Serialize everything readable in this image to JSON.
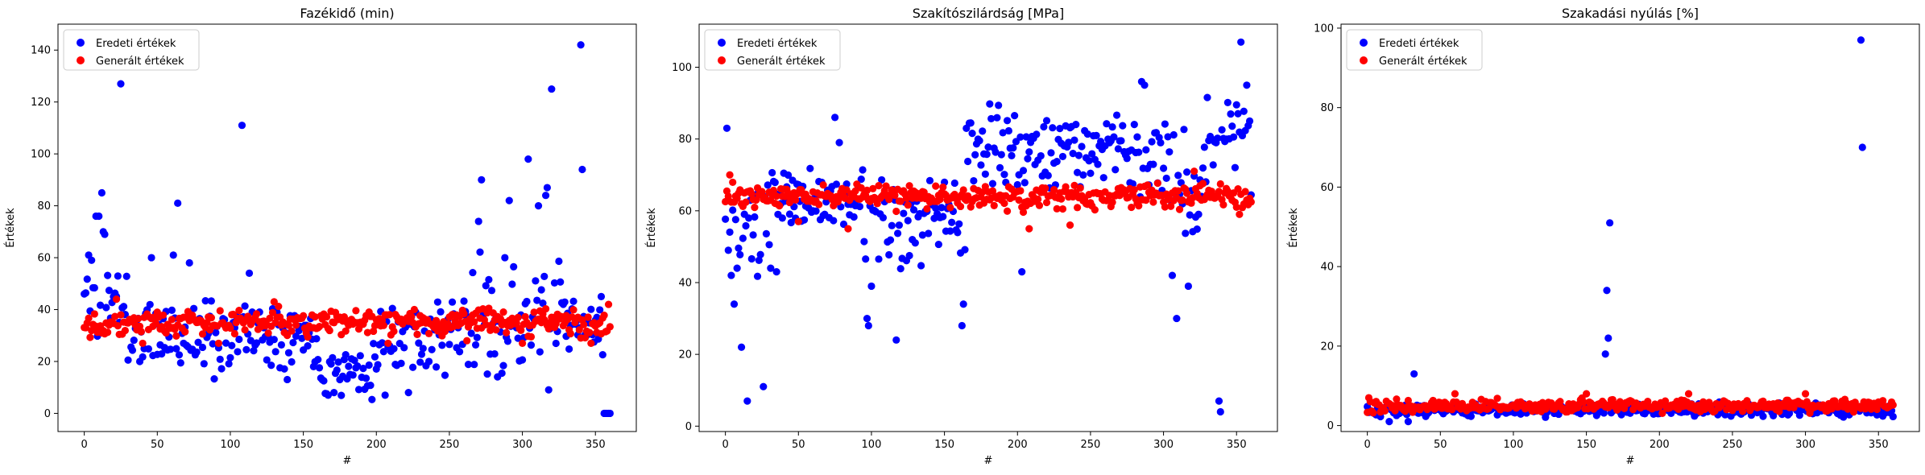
{
  "colors": {
    "original": "#0000ff",
    "generated": "#ff0000",
    "axis": "#000000",
    "legend_border": "#cccccc"
  },
  "chart_data": [
    {
      "type": "scatter",
      "title": "Fazékidő (min)",
      "xlabel": "#",
      "ylabel": "Értékek",
      "xlim": [
        -18,
        378
      ],
      "ylim": [
        -7,
        150
      ],
      "xticks": [
        0,
        50,
        100,
        150,
        200,
        250,
        300,
        350
      ],
      "yticks": [
        0,
        20,
        40,
        60,
        80,
        100,
        120,
        140
      ],
      "grid": false,
      "legend_position": "top-left",
      "legend": [
        "Eredeti értékek",
        "Generált értékek"
      ],
      "series": [
        {
          "name": "Eredeti értékek",
          "color": "#0000ff",
          "n": 360,
          "base": 27,
          "spread": 11,
          "seed": 11,
          "segments": [
            [
              0,
              30,
              44,
              14
            ],
            [
              30,
              100,
              30,
              13
            ],
            [
              100,
              160,
              31,
              11
            ],
            [
              160,
              200,
              17,
              8
            ],
            [
              200,
              260,
              30,
              14
            ],
            [
              260,
              330,
              35,
              18
            ],
            [
              330,
              355,
              33,
              9
            ]
          ],
          "points": [
            [
              0,
              46
            ],
            [
              3,
              61
            ],
            [
              5,
              59
            ],
            [
              8,
              76
            ],
            [
              10,
              76
            ],
            [
              12,
              85
            ],
            [
              13,
              70
            ],
            [
              14,
              69
            ],
            [
              20,
              45
            ],
            [
              25,
              127
            ],
            [
              46,
              60
            ],
            [
              61,
              61
            ],
            [
              64,
              81
            ],
            [
              72,
              58
            ],
            [
              108,
              111
            ],
            [
              113,
              54
            ],
            [
              167,
              7
            ],
            [
              171,
              8
            ],
            [
              175,
              13
            ],
            [
              206,
              7
            ],
            [
              222,
              8
            ],
            [
              270,
              74
            ],
            [
              272,
              90
            ],
            [
              288,
              60
            ],
            [
              291,
              82
            ],
            [
              304,
              98
            ],
            [
              311,
              80
            ],
            [
              316,
              84
            ],
            [
              317,
              87
            ],
            [
              320,
              125
            ],
            [
              340,
              142
            ],
            [
              341,
              94
            ],
            [
              354,
              45
            ],
            [
              356,
              0
            ],
            [
              357,
              0
            ],
            [
              358,
              0
            ],
            [
              359,
              0
            ],
            [
              360,
              0
            ]
          ]
        },
        {
          "name": "Generált értékek",
          "color": "#ff0000",
          "n": 360,
          "base": 35,
          "spread": 4,
          "seed": 22,
          "points": [
            [
              1,
              33
            ],
            [
              22,
              44
            ],
            [
              40,
              27
            ],
            [
              92,
              27
            ],
            [
              130,
              43
            ],
            [
              208,
              27
            ],
            [
              262,
              28
            ],
            [
              300,
              27
            ],
            [
              347,
              27
            ],
            [
              359,
              42
            ]
          ]
        }
      ]
    },
    {
      "type": "scatter",
      "title": "Szakítószilárdság [MPa]",
      "xlabel": "#",
      "ylabel": "Értékek",
      "xlim": [
        -18,
        378
      ],
      "ylim": [
        -1.5,
        112
      ],
      "xticks": [
        0,
        50,
        100,
        150,
        200,
        250,
        300,
        350
      ],
      "yticks": [
        0,
        20,
        40,
        60,
        80,
        100
      ],
      "grid": false,
      "legend_position": "top-left",
      "legend": [
        "Eredeti értékek",
        "Generált értékek"
      ],
      "series": [
        {
          "name": "Eredeti értékek",
          "color": "#0000ff",
          "n": 360,
          "base": 62,
          "spread": 8,
          "seed": 33,
          "segments": [
            [
              0,
              30,
              52,
              12
            ],
            [
              30,
              95,
              63,
              8
            ],
            [
              95,
              165,
              56,
              10
            ],
            [
              165,
              270,
              77,
              9
            ],
            [
              270,
              305,
              76,
              10
            ],
            [
              305,
              330,
              66,
              14
            ],
            [
              330,
              360,
              82,
              9
            ]
          ],
          "points": [
            [
              1,
              83
            ],
            [
              4,
              42
            ],
            [
              6,
              34
            ],
            [
              8,
              44
            ],
            [
              11,
              22
            ],
            [
              15,
              7
            ],
            [
              26,
              11
            ],
            [
              31,
              44
            ],
            [
              35,
              43
            ],
            [
              75,
              86
            ],
            [
              78,
              79
            ],
            [
              97,
              30
            ],
            [
              98,
              28
            ],
            [
              100,
              39
            ],
            [
              117,
              24
            ],
            [
              162,
              28
            ],
            [
              163,
              34
            ],
            [
              203,
              43
            ],
            [
              285,
              96
            ],
            [
              287,
              95
            ],
            [
              306,
              42
            ],
            [
              309,
              30
            ],
            [
              317,
              39
            ],
            [
              338,
              7
            ],
            [
              339,
              4
            ],
            [
              353,
              107
            ],
            [
              357,
              95
            ],
            [
              359,
              85
            ]
          ]
        },
        {
          "name": "Generált értékek",
          "color": "#ff0000",
          "n": 360,
          "base": 64,
          "spread": 3,
          "seed": 44,
          "points": [
            [
              3,
              70
            ],
            [
              50,
              57
            ],
            [
              84,
              55
            ],
            [
              208,
              55
            ],
            [
              236,
              56
            ],
            [
              321,
              71
            ],
            [
              352,
              59
            ]
          ]
        }
      ]
    },
    {
      "type": "scatter",
      "title": "Szakadási nyúlás [%]",
      "xlabel": "#",
      "ylabel": "Értékek",
      "xlim": [
        -18,
        378
      ],
      "ylim": [
        -1.5,
        101
      ],
      "xticks": [
        0,
        50,
        100,
        150,
        200,
        250,
        300,
        350
      ],
      "yticks": [
        0,
        20,
        40,
        60,
        80,
        100
      ],
      "grid": false,
      "legend_position": "top-left",
      "legend": [
        "Eredeti értékek",
        "Generált értékek"
      ],
      "series": [
        {
          "name": "Eredeti értékek",
          "color": "#0000ff",
          "n": 360,
          "base": 4,
          "spread": 1.3,
          "seed": 55,
          "points": [
            [
              15,
              1
            ],
            [
              28,
              1
            ],
            [
              32,
              13
            ],
            [
              163,
              18
            ],
            [
              164,
              34
            ],
            [
              165,
              22
            ],
            [
              166,
              51
            ],
            [
              338,
              97
            ],
            [
              339,
              70
            ]
          ]
        },
        {
          "name": "Generált értékek",
          "color": "#ff0000",
          "n": 360,
          "base": 5,
          "spread": 1.3,
          "seed": 66,
          "points": [
            [
              1,
              7
            ],
            [
              60,
              8
            ],
            [
              150,
              8
            ],
            [
              220,
              8
            ],
            [
              300,
              8
            ]
          ]
        }
      ]
    }
  ]
}
